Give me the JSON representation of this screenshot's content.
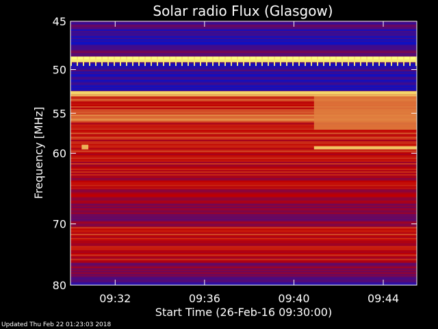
{
  "chart_data": {
    "type": "heatmap",
    "title": "Solar radio Flux (Glasgow)",
    "xlabel": "Start Time (26-Feb-16 09:30:00)",
    "ylabel": "Frequency [MHz]",
    "x_unit": "minutes after 09:30:00",
    "xlim": [
      0,
      15.5
    ],
    "ylim": [
      45,
      80
    ],
    "x_ticks": [
      {
        "value": 2,
        "label": "09:32"
      },
      {
        "value": 6,
        "label": "09:36"
      },
      {
        "value": 10,
        "label": "09:40"
      },
      {
        "value": 14,
        "label": "09:44"
      }
    ],
    "y_ticks": [
      {
        "value": 45,
        "label": "45"
      },
      {
        "value": 50,
        "label": "50"
      },
      {
        "value": 55,
        "label": "55"
      },
      {
        "value": 60,
        "label": "60"
      },
      {
        "value": 70,
        "label": "70"
      },
      {
        "value": 80,
        "label": "80"
      }
    ],
    "colors": {
      "background": "#000000",
      "low": "#1010c0",
      "mid": "#c00000",
      "high": "#ffff80"
    },
    "bands": [
      {
        "f0": 45.0,
        "f1": 45.8,
        "level": 0.15
      },
      {
        "f0": 45.8,
        "f1": 47.8,
        "level": 0.05
      },
      {
        "f0": 47.8,
        "f1": 48.6,
        "level": 0.25
      },
      {
        "f0": 48.6,
        "f1": 49.2,
        "level": 0.98
      },
      {
        "f0": 49.2,
        "f1": 50.2,
        "level": 0.1
      },
      {
        "f0": 50.2,
        "f1": 52.4,
        "level": 0.05
      },
      {
        "f0": 52.4,
        "f1": 53.0,
        "level": 0.9
      },
      {
        "f0": 53.0,
        "f1": 54.5,
        "level": 0.6
      },
      {
        "f0": 54.5,
        "f1": 56.0,
        "level": 0.7
      },
      {
        "f0": 56.0,
        "f1": 59.0,
        "level": 0.55
      },
      {
        "f0": 59.0,
        "f1": 61.5,
        "level": 0.5
      },
      {
        "f0": 61.5,
        "f1": 63.0,
        "level": 0.5
      },
      {
        "f0": 63.0,
        "f1": 66.0,
        "level": 0.45
      },
      {
        "f0": 66.0,
        "f1": 68.5,
        "level": 0.35
      },
      {
        "f0": 68.5,
        "f1": 70.5,
        "level": 0.3
      },
      {
        "f0": 70.5,
        "f1": 73.0,
        "level": 0.55
      },
      {
        "f0": 73.0,
        "f1": 76.0,
        "level": 0.5
      },
      {
        "f0": 76.0,
        "f1": 78.5,
        "level": 0.3
      },
      {
        "f0": 78.5,
        "f1": 80.0,
        "level": 0.15
      }
    ],
    "events": [
      {
        "t0": 10.9,
        "t1": 15.5,
        "f0": 53.0,
        "f1": 57.0,
        "level": 0.75
      },
      {
        "t0": 10.9,
        "t1": 15.5,
        "f0": 59.1,
        "f1": 59.5,
        "level": 0.95
      },
      {
        "t0": 0.5,
        "t1": 0.8,
        "f0": 58.9,
        "f1": 59.5,
        "level": 0.9
      }
    ]
  },
  "footer": "Updated Thu Feb 22 01:23:03 2018"
}
